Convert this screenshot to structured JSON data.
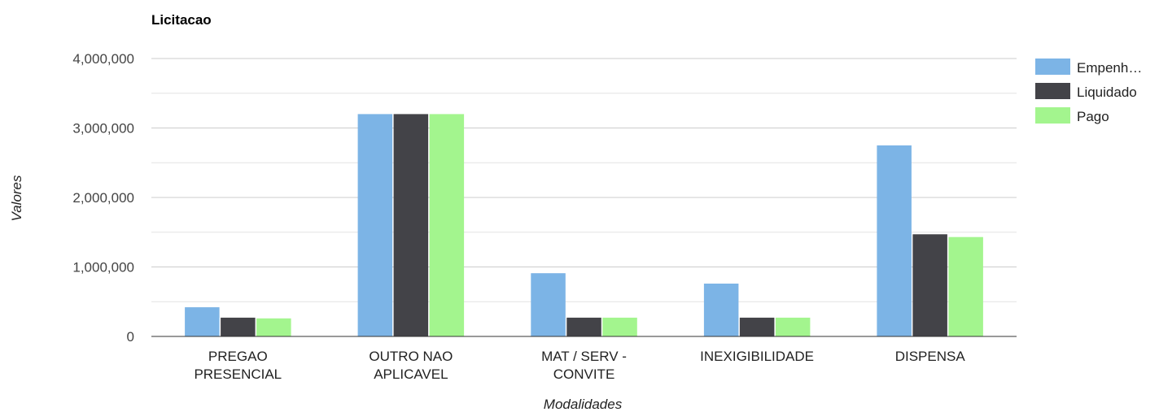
{
  "chart_data": {
    "type": "bar",
    "title": "Licitacao",
    "xlabel": "Modalidades",
    "ylabel": "Valores",
    "ylim": [
      0,
      4000000
    ],
    "yticks": [
      0,
      1000000,
      2000000,
      3000000,
      4000000
    ],
    "ytick_labels": [
      "0",
      "1,000,000",
      "2,000,000",
      "3,000,000",
      "4,000,000"
    ],
    "grid": true,
    "legend_position": "right",
    "categories": [
      [
        "PREGAO",
        "PRESENCIAL"
      ],
      [
        "OUTRO NAO",
        "APLICAVEL"
      ],
      [
        "MAT / SERV -",
        "CONVITE"
      ],
      [
        "INEXIGIBILIDADE"
      ],
      [
        "DISPENSA"
      ]
    ],
    "series": [
      {
        "name": "Empenh…",
        "color": "#7cb4e6",
        "values": [
          420000,
          3200000,
          910000,
          760000,
          2750000
        ]
      },
      {
        "name": "Liquidado",
        "color": "#434348",
        "values": [
          270000,
          3200000,
          270000,
          270000,
          1470000
        ]
      },
      {
        "name": "Pago",
        "color": "#a3f58e",
        "values": [
          260000,
          3200000,
          270000,
          270000,
          1430000
        ]
      }
    ]
  }
}
